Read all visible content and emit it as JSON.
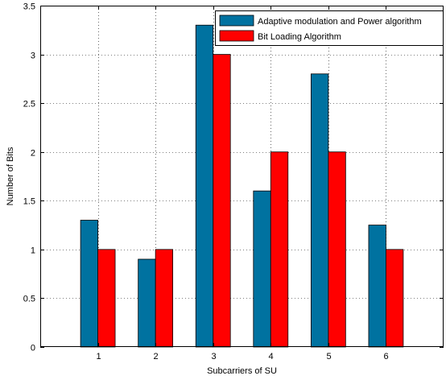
{
  "chart_data": {
    "type": "bar",
    "categories": [
      "1",
      "2",
      "3",
      "4",
      "5",
      "6"
    ],
    "series": [
      {
        "name": "Adaptive modulation and Power algorithm",
        "values": [
          1.3,
          0.9,
          3.3,
          1.6,
          2.8,
          1.25
        ],
        "color": "#0072a0"
      },
      {
        "name": "Bit Loading Algorithm",
        "values": [
          1,
          1,
          3,
          2,
          2,
          1
        ],
        "color": "#ff0000"
      }
    ],
    "xlabel": "Subcarriers of SU",
    "ylabel": "Number of Bits",
    "xlim": [
      0,
      7
    ],
    "ylim": [
      0,
      3.5
    ],
    "yticks": [
      "0",
      "0.5",
      "1",
      "1.5",
      "2",
      "2.5",
      "3",
      "3.5"
    ],
    "grid": true,
    "legend_position": "top-right"
  }
}
